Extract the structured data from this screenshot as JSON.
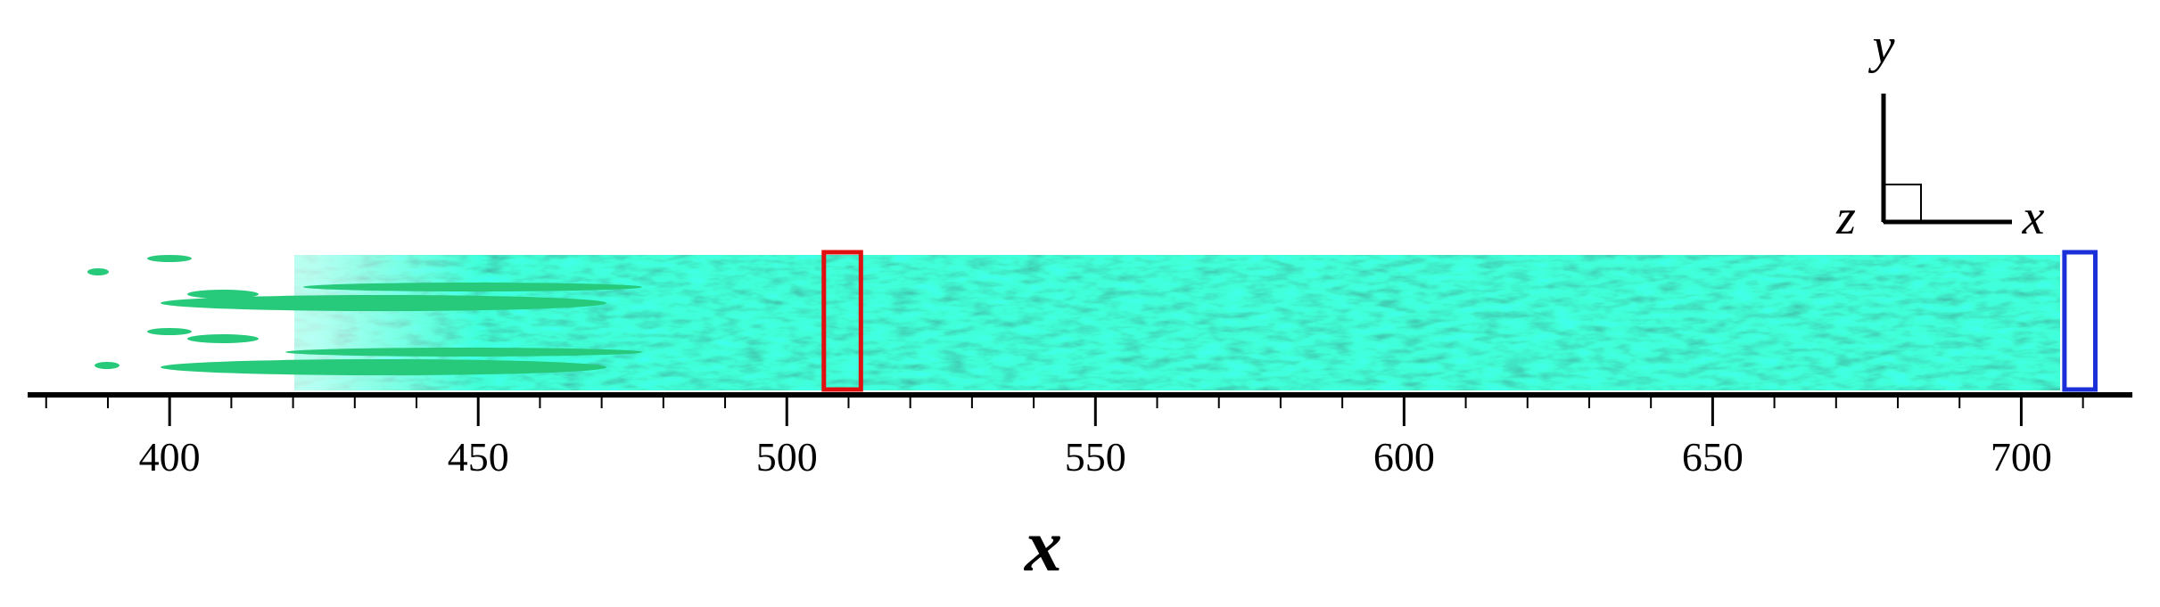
{
  "chart_data": {
    "type": "field",
    "xlabel": "x",
    "xlim": [
      377,
      718
    ],
    "xticks": [
      400,
      450,
      500,
      550,
      600,
      650,
      700
    ],
    "xminorticks": [
      380,
      390,
      410,
      420,
      430,
      440,
      460,
      470,
      480,
      490,
      510,
      520,
      530,
      540,
      560,
      570,
      580,
      590,
      610,
      620,
      630,
      640,
      660,
      670,
      680,
      690,
      710
    ],
    "regions": [
      {
        "color": "#e01010",
        "x": [
          506,
          512
        ]
      },
      {
        "color": "#1a2fd8",
        "x": [
          707,
          712
        ]
      }
    ],
    "triad_labels": [
      "y",
      "z",
      "x"
    ]
  }
}
